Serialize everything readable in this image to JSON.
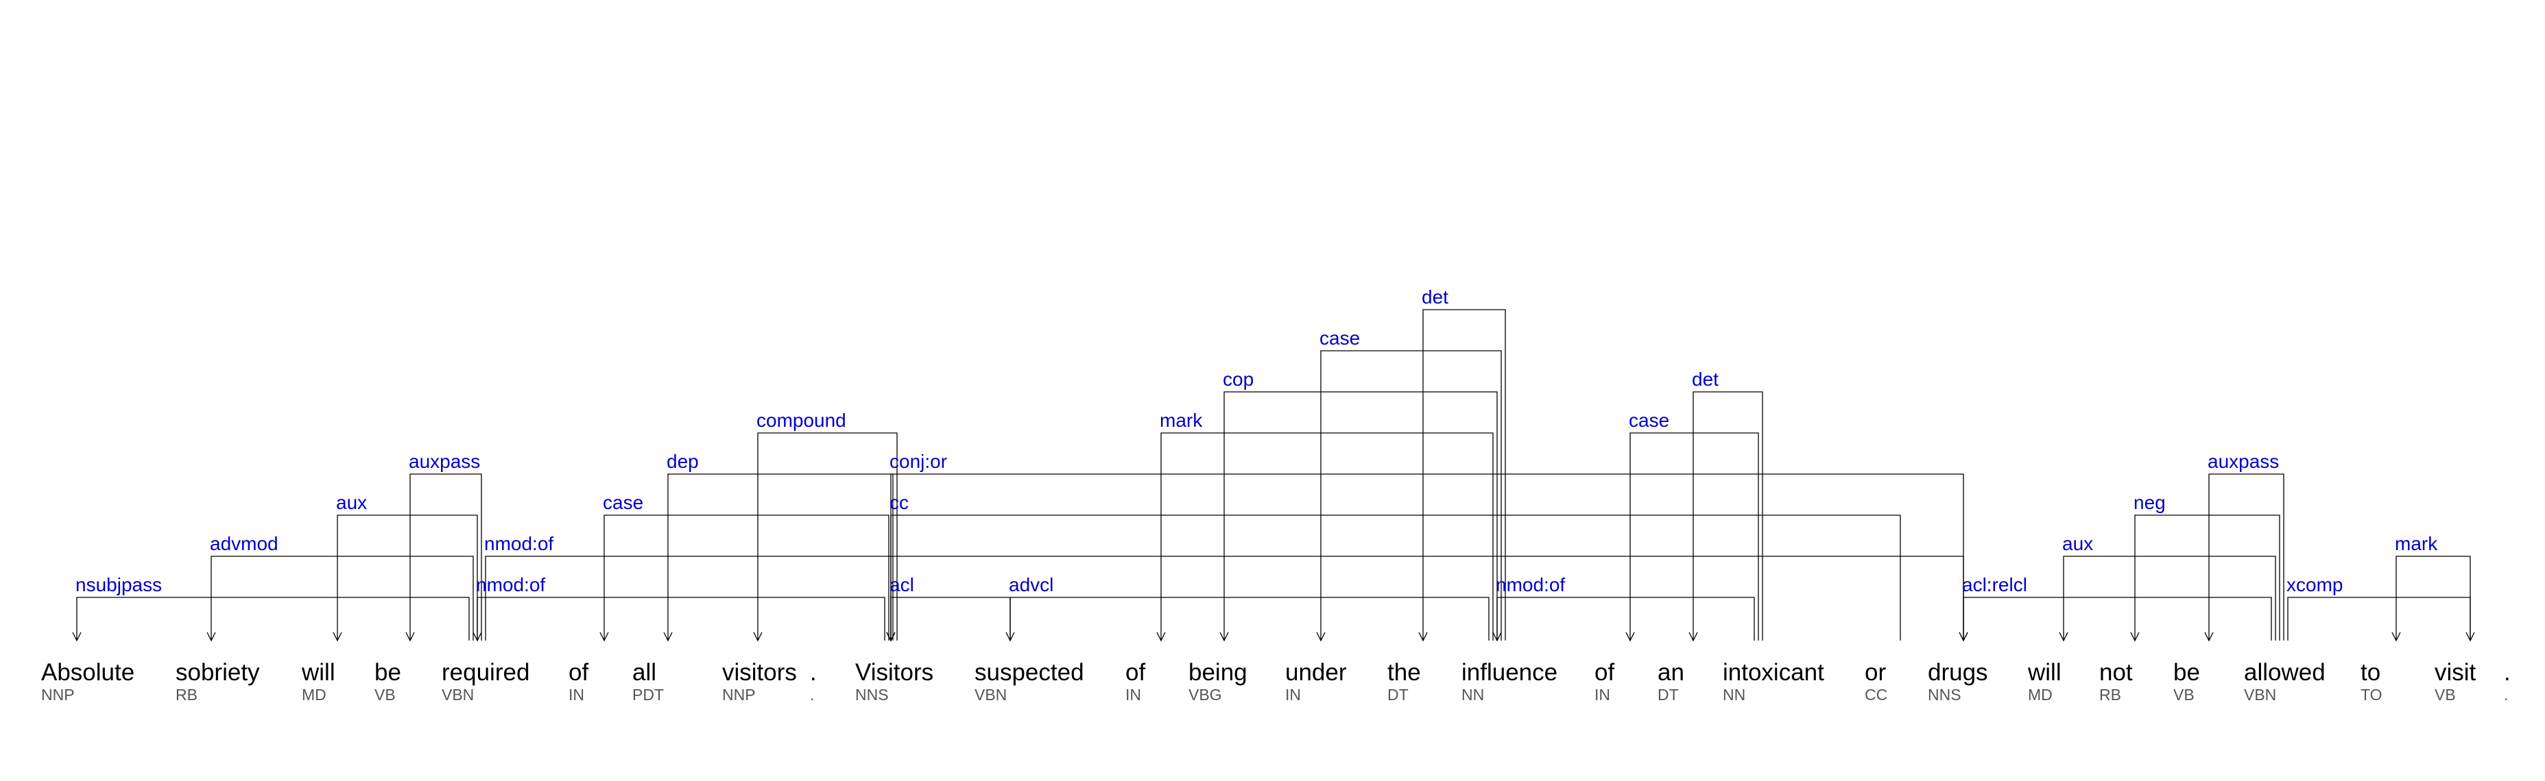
{
  "sentence": {
    "tokens": [
      {
        "word": "Absolute",
        "tag": "NNP"
      },
      {
        "word": "sobriety",
        "tag": "RB"
      },
      {
        "word": "will",
        "tag": "MD"
      },
      {
        "word": "be",
        "tag": "VB"
      },
      {
        "word": "required",
        "tag": "VBN"
      },
      {
        "word": "of",
        "tag": "IN"
      },
      {
        "word": "all",
        "tag": "PDT"
      },
      {
        "word": "visitors",
        "tag": "NNP"
      },
      {
        "word": ".",
        "tag": "."
      },
      {
        "word": "Visitors",
        "tag": "NNS"
      },
      {
        "word": "suspected",
        "tag": "VBN"
      },
      {
        "word": "of",
        "tag": "IN"
      },
      {
        "word": "being",
        "tag": "VBG"
      },
      {
        "word": "under",
        "tag": "IN"
      },
      {
        "word": "the",
        "tag": "DT"
      },
      {
        "word": "influence",
        "tag": "NN"
      },
      {
        "word": "of",
        "tag": "IN"
      },
      {
        "word": "an",
        "tag": "DT"
      },
      {
        "word": "intoxicant",
        "tag": "NN"
      },
      {
        "word": "or",
        "tag": "CC"
      },
      {
        "word": "drugs",
        "tag": "NNS"
      },
      {
        "word": "will",
        "tag": "MD"
      },
      {
        "word": "not",
        "tag": "RB"
      },
      {
        "word": "be",
        "tag": "VB"
      },
      {
        "word": "allowed",
        "tag": "VBN"
      },
      {
        "word": "to",
        "tag": "TO"
      },
      {
        "word": "visit",
        "tag": "VB"
      },
      {
        "word": ".",
        "tag": "."
      }
    ]
  },
  "dependencies": [
    {
      "label": "nsubjpass",
      "head": 4,
      "dep": 0,
      "level": 1
    },
    {
      "label": "advmod",
      "head": 4,
      "dep": 1,
      "level": 2
    },
    {
      "label": "aux",
      "head": 4,
      "dep": 2,
      "level": 3
    },
    {
      "label": "auxpass",
      "head": 4,
      "dep": 3,
      "level": 4
    },
    {
      "label": "nmod:of",
      "head": 4,
      "dep": 20,
      "level": 2
    },
    {
      "label": "nmod:of",
      "head": 9,
      "dep": 4,
      "level": 1
    },
    {
      "label": "case",
      "head": 9,
      "dep": 5,
      "level": 3
    },
    {
      "label": "dep",
      "head": 9,
      "dep": 6,
      "level": 4
    },
    {
      "label": "compound",
      "head": 9,
      "dep": 7,
      "level": 5
    },
    {
      "label": "acl",
      "head": 10,
      "dep": 9,
      "level": 1
    },
    {
      "label": "cc",
      "head": 19,
      "dep": 9,
      "level": 3
    },
    {
      "label": "conj:or",
      "head": 20,
      "dep": 9,
      "level": 4
    },
    {
      "label": "advcl",
      "head": 15,
      "dep": 10,
      "level": 1
    },
    {
      "label": "mark",
      "head": 15,
      "dep": 11,
      "level": 5
    },
    {
      "label": "cop",
      "head": 15,
      "dep": 12,
      "level": 6
    },
    {
      "label": "case",
      "head": 15,
      "dep": 13,
      "level": 7
    },
    {
      "label": "det",
      "head": 15,
      "dep": 14,
      "level": 8
    },
    {
      "label": "nmod:of",
      "head": 18,
      "dep": 15,
      "level": 1
    },
    {
      "label": "case",
      "head": 18,
      "dep": 16,
      "level": 5
    },
    {
      "label": "det",
      "head": 18,
      "dep": 17,
      "level": 6
    },
    {
      "label": "acl:relcl",
      "head": 24,
      "dep": 20,
      "level": 1
    },
    {
      "label": "aux",
      "head": 24,
      "dep": 21,
      "level": 2
    },
    {
      "label": "neg",
      "head": 24,
      "dep": 22,
      "level": 3
    },
    {
      "label": "auxpass",
      "head": 24,
      "dep": 23,
      "level": 4
    },
    {
      "label": "xcomp",
      "head": 24,
      "dep": 26,
      "level": 1
    },
    {
      "label": "mark",
      "head": 26,
      "dep": 25,
      "level": 2
    }
  ]
}
